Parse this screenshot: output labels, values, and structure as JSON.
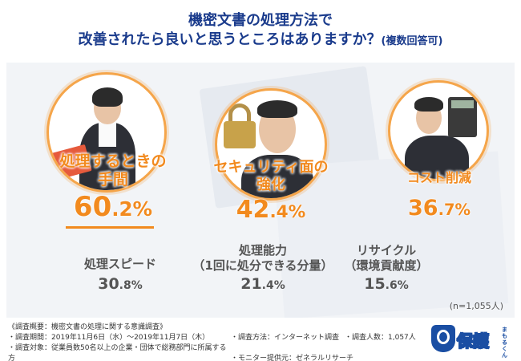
{
  "title": {
    "line1": "機密文書の処理方法で",
    "line2": "改善されたら良いと思うところはありますか？",
    "line2_sub": "(複数回答可)"
  },
  "chart_data": {
    "type": "table",
    "categories": [
      "処理するときの手間",
      "セキュリティ面の強化",
      "コスト削減",
      "処理スピード",
      "処理能力（1回に処分できる分量）",
      "リサイクル（環境貢献度）"
    ],
    "values": [
      60.2,
      42.4,
      36.7,
      30.8,
      21.4,
      15.6
    ],
    "unit": "%",
    "note": "(n=1,055人)"
  },
  "highlights": [
    {
      "label_l1": "処理するときの",
      "label_l2": "手間",
      "int": "60",
      "dec": ".2%"
    },
    {
      "label_l1": "セキュリティ面の",
      "label_l2": "強化",
      "int": "42",
      "dec": ".4%"
    },
    {
      "label_l1": "コスト削減",
      "label_l2": "",
      "int": "36",
      "dec": ".7%"
    }
  ],
  "others": [
    {
      "label_l1": "処理スピード",
      "label_l2": "",
      "int": "30",
      "dec": ".8%"
    },
    {
      "label_l1": "処理能力",
      "label_l2": "（1回に処分できる分量）",
      "int": "21",
      "dec": ".4%"
    },
    {
      "label_l1": "リサイクル",
      "label_l2": "（環境貢献度）",
      "int": "15",
      "dec": ".6%"
    }
  ],
  "footer": {
    "heading": "《調査概要：機密文書の処理に関する意識調査》",
    "period": "・調査期間：2019年11月6日（水）～2019年11月7日（木）",
    "target": "・調査対象：従業員数50名以上の企業・団体で総務部門に所属する方",
    "method": "・調査方法：インターネット調査",
    "provider": "・モニター提供元：ゼネラルリサーチ",
    "count": "・調査人数：1,057人"
  },
  "logo": {
    "text": "保護",
    "suffix": "まもるくん"
  },
  "colors": {
    "accent": "#f28a1e",
    "title": "#1a3b8c",
    "gray_text": "#555555"
  }
}
